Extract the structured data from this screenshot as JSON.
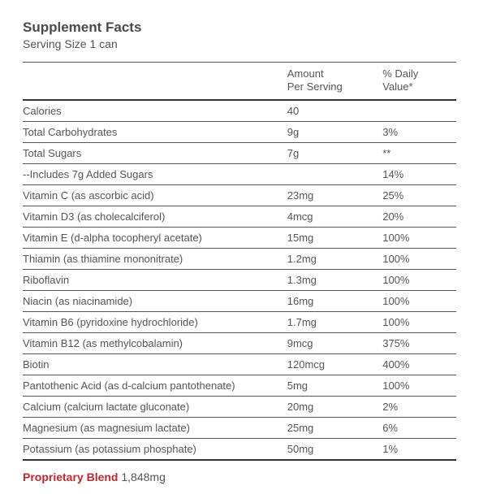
{
  "title": "Supplement Facts",
  "serving_size": "Serving Size 1 can",
  "headers": {
    "name": "",
    "amount_line1": "Amount",
    "amount_line2": "Per Serving",
    "dv_line1": "% Daily",
    "dv_line2": "Value*"
  },
  "rows": [
    {
      "name": "Calories",
      "amount": "40",
      "dv": ""
    },
    {
      "name": "Total Carbohydrates",
      "amount": "9g",
      "dv": "3%"
    },
    {
      "name": "Total Sugars",
      "amount": "7g",
      "dv": "**"
    },
    {
      "name": "--Includes 7g Added Sugars",
      "amount": "",
      "dv": "14%"
    },
    {
      "name": "Vitamin C (as ascorbic acid)",
      "amount": "23mg",
      "dv": "25%"
    },
    {
      "name": "Vitamin D3 (as cholecalciferol)",
      "amount": "4mcg",
      "dv": "20%"
    },
    {
      "name": "Vitamin E (d-alpha tocopheryl acetate)",
      "amount": "15mg",
      "dv": "100%"
    },
    {
      "name": "Thiamin (as thiamine mononitrate)",
      "amount": "1.2mg",
      "dv": "100%"
    },
    {
      "name": "Riboflavin",
      "amount": "1.3mg",
      "dv": "100%"
    },
    {
      "name": "Niacin (as niacinamide)",
      "amount": "16mg",
      "dv": "100%"
    },
    {
      "name": "Vitamin B6 (pyridoxine hydrochloride)",
      "amount": "1.7mg",
      "dv": "100%"
    },
    {
      "name": "Vitamin B12 (as methylcobalamin)",
      "amount": "9mcg",
      "dv": "375%"
    },
    {
      "name": "Biotin",
      "amount": "120mcg",
      "dv": "400%"
    },
    {
      "name": "Pantothenic Acid (as d-calcium pantothenate)",
      "amount": "5mg",
      "dv": "100%"
    },
    {
      "name": "Calcium (calcium lactate gluconate)",
      "amount": "20mg",
      "dv": "2%"
    },
    {
      "name": "Magnesium (as magnesium lactate)",
      "amount": "25mg",
      "dv": "6%"
    },
    {
      "name": "Potassium (as potassium phosphate)",
      "amount": "50mg",
      "dv": "1%"
    }
  ],
  "blend": {
    "label": "Proprietary Blend",
    "amount": "1,848mg"
  },
  "colors": {
    "text": "#545454",
    "rule": "#555555",
    "heavy_rule": "#333333",
    "accent": "#c0272d",
    "background": "#ffffff"
  }
}
